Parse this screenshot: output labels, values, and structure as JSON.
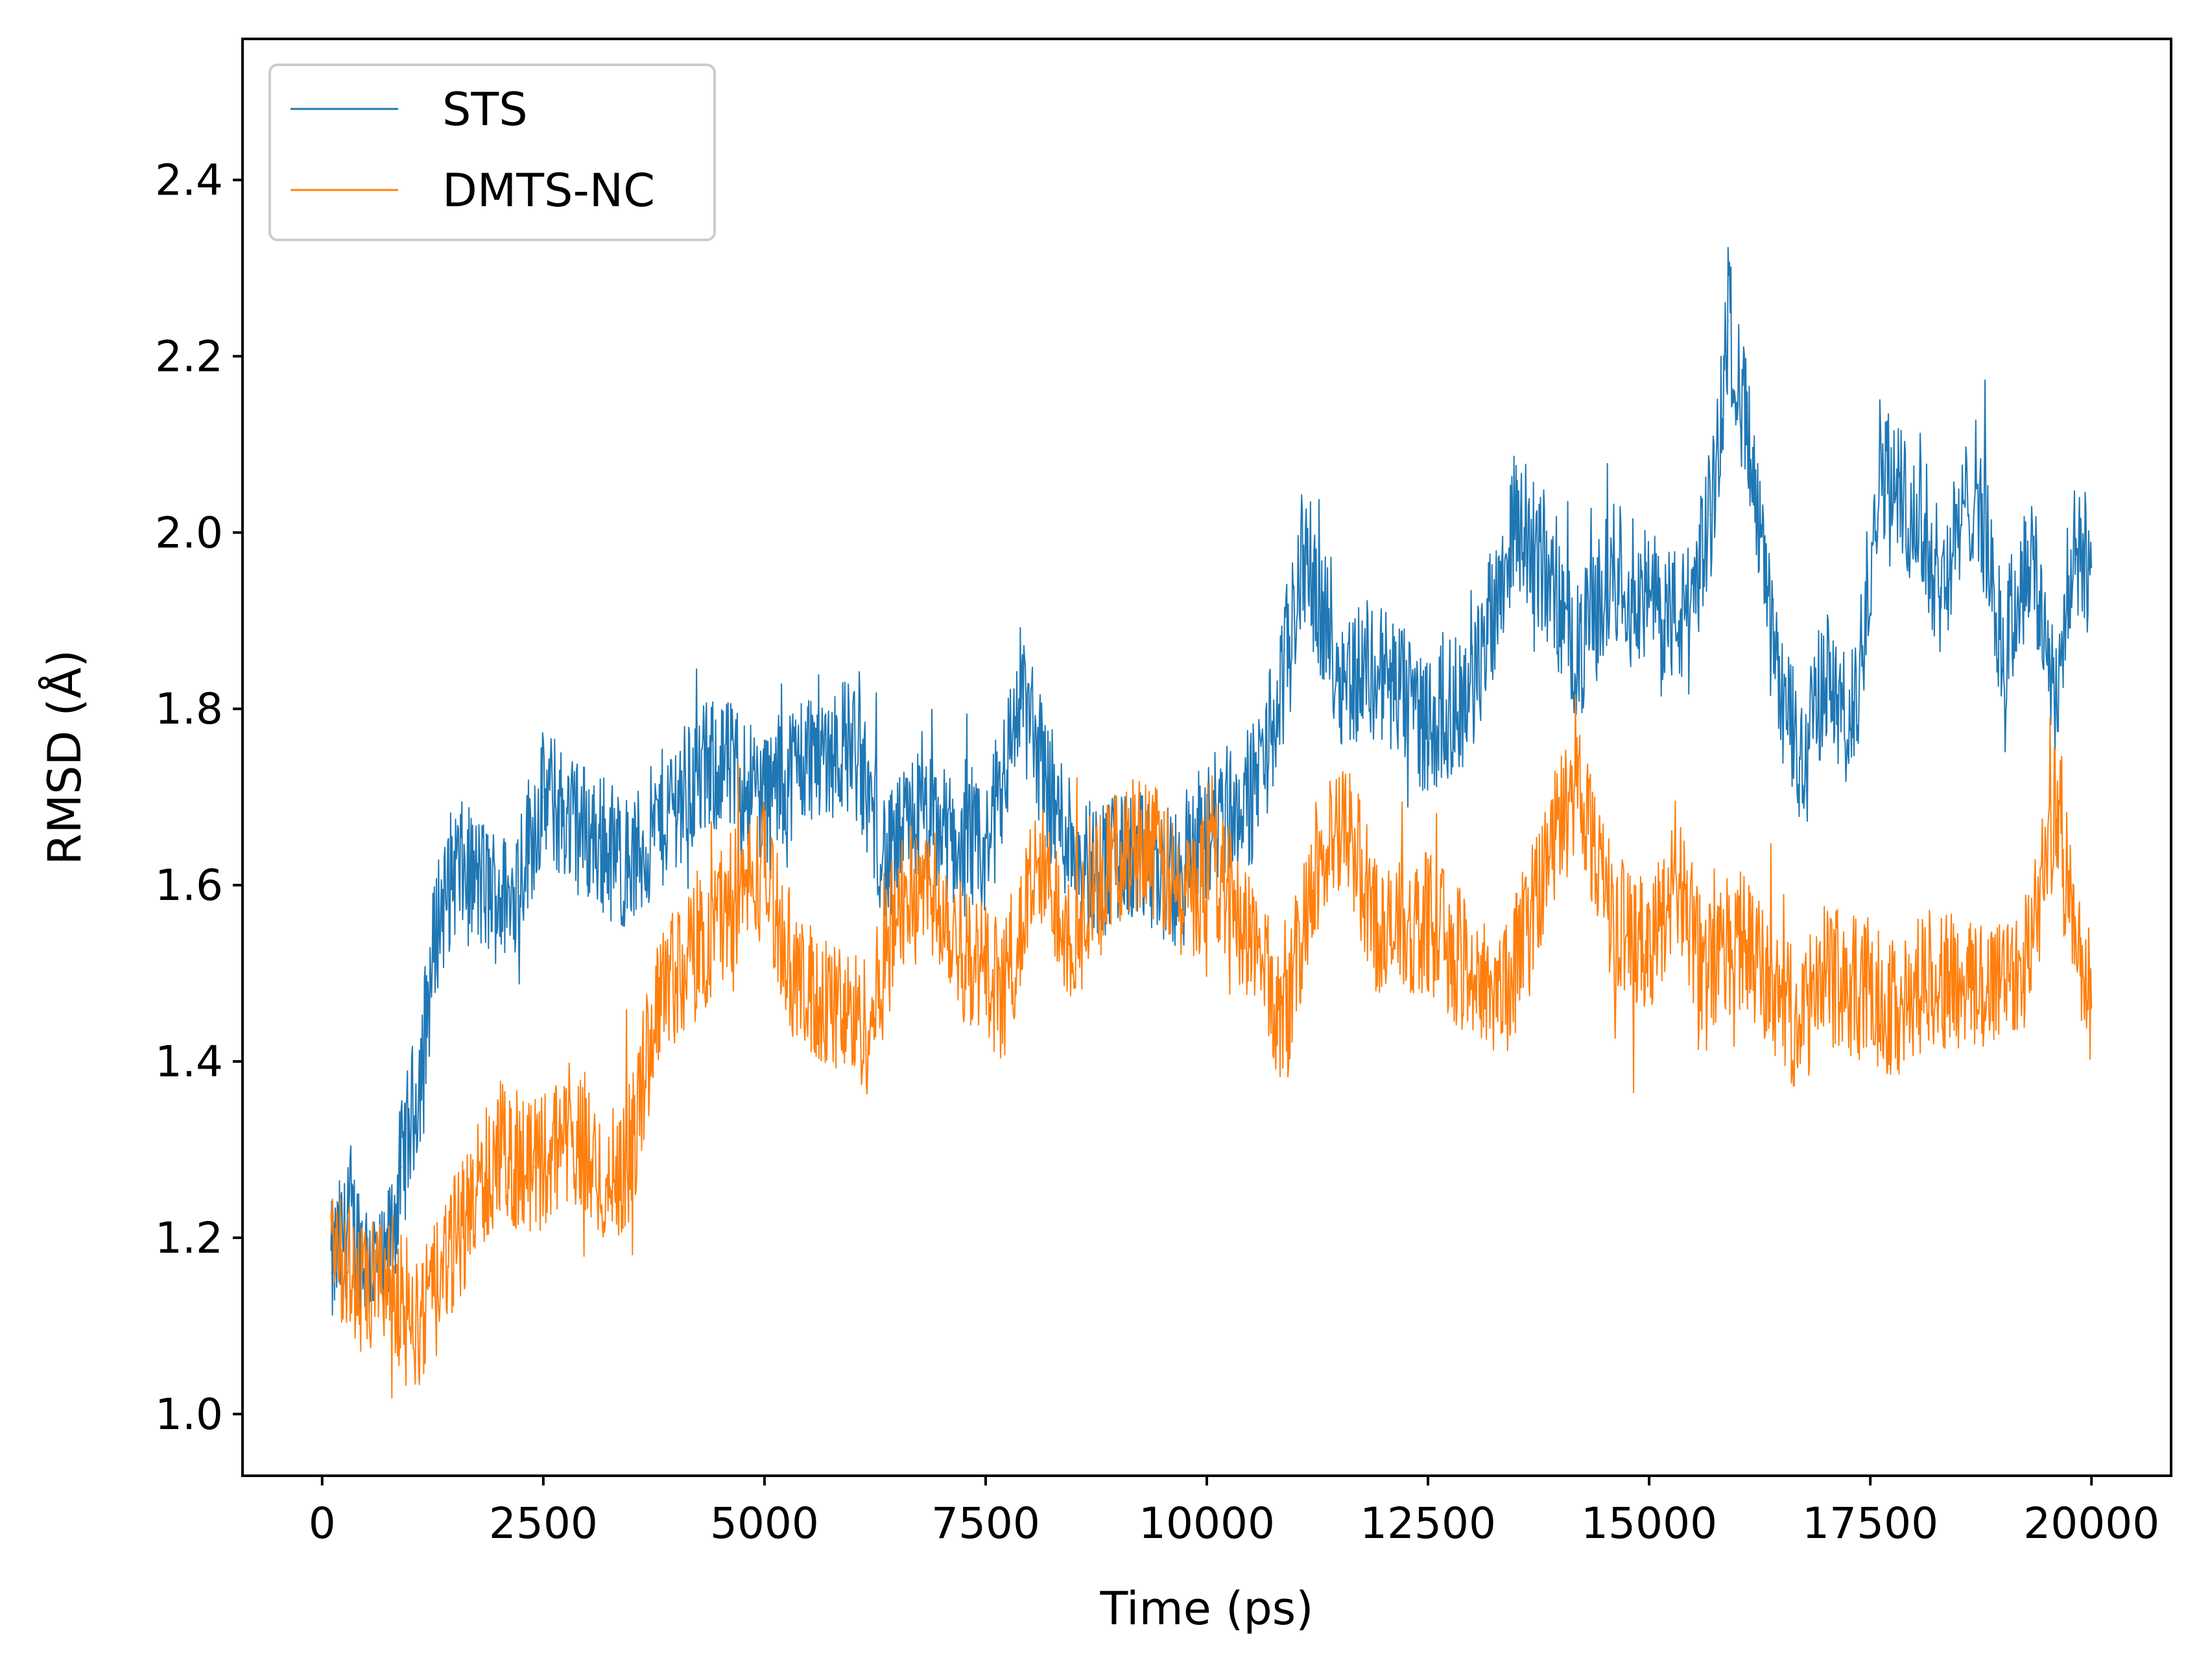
{
  "chart_data": {
    "type": "line",
    "title": "",
    "xlabel": "Time (ps)",
    "ylabel": "RMSD (Å)",
    "xlim": [
      -900,
      20900
    ],
    "ylim": [
      0.93,
      2.56
    ],
    "x_ticks": [
      0,
      2500,
      5000,
      7500,
      10000,
      12500,
      15000,
      17500,
      20000
    ],
    "x_tick_labels": [
      "0",
      "2500",
      "5000",
      "7500",
      "10000",
      "12500",
      "15000",
      "17500",
      "20000"
    ],
    "y_ticks": [
      1.0,
      1.2,
      1.4,
      1.6,
      1.8,
      2.0,
      2.2,
      2.4
    ],
    "y_tick_labels": [
      "1.0",
      "1.2",
      "1.4",
      "1.6",
      "1.8",
      "2.0",
      "2.2",
      "2.4"
    ],
    "grid": false,
    "legend_position": "top-left",
    "series": [
      {
        "name": "STS",
        "color": "#1f77b4",
        "x": [
          100,
          300,
          500,
          700,
          900,
          1100,
          1300,
          1500,
          1800,
          2100,
          2500,
          3000,
          3500,
          4000,
          4500,
          5000,
          5500,
          6000,
          6400,
          6700,
          7000,
          7500,
          7900,
          8300,
          8700,
          9200,
          9700,
          10100,
          10500,
          10800,
          11100,
          11500,
          12000,
          12500,
          13000,
          13500,
          13800,
          14200,
          14600,
          15000,
          15400,
          15700,
          15900,
          16100,
          16400,
          16700,
          17000,
          17300,
          17600,
          18000,
          18300,
          18700,
          19000,
          19300,
          19600,
          19800,
          20000
        ],
        "values": [
          1.16,
          1.22,
          1.18,
          1.15,
          1.28,
          1.38,
          1.56,
          1.62,
          1.6,
          1.58,
          1.7,
          1.66,
          1.62,
          1.7,
          1.74,
          1.7,
          1.75,
          1.76,
          1.62,
          1.68,
          1.66,
          1.63,
          1.82,
          1.68,
          1.62,
          1.63,
          1.6,
          1.68,
          1.7,
          1.8,
          1.98,
          1.84,
          1.84,
          1.78,
          1.82,
          2.02,
          1.96,
          1.86,
          1.96,
          1.92,
          1.9,
          2.02,
          2.24,
          2.12,
          1.86,
          1.74,
          1.84,
          1.76,
          2.08,
          2.02,
          1.94,
          2.06,
          1.86,
          1.98,
          1.82,
          1.97,
          1.96
        ]
      },
      {
        "name": "DMTS-NC",
        "color": "#ff7f0e",
        "x": [
          100,
          300,
          500,
          700,
          900,
          1100,
          1300,
          1600,
          2000,
          2400,
          2800,
          3200,
          3500,
          3800,
          4200,
          4600,
          5000,
          5400,
          5800,
          6200,
          6500,
          6900,
          7300,
          7700,
          8100,
          8500,
          8900,
          9300,
          9700,
          10100,
          10500,
          10900,
          11200,
          11600,
          12000,
          12500,
          13000,
          13400,
          13800,
          14200,
          14600,
          15000,
          15300,
          15600,
          16000,
          16400,
          16700,
          17000,
          17400,
          17800,
          18200,
          18600,
          19000,
          19300,
          19600,
          19800,
          20000
        ],
        "values": [
          1.22,
          1.16,
          1.13,
          1.16,
          1.13,
          1.1,
          1.14,
          1.22,
          1.3,
          1.28,
          1.32,
          1.26,
          1.3,
          1.48,
          1.52,
          1.58,
          1.62,
          1.48,
          1.46,
          1.44,
          1.58,
          1.6,
          1.52,
          1.48,
          1.62,
          1.54,
          1.62,
          1.66,
          1.58,
          1.62,
          1.54,
          1.44,
          1.62,
          1.66,
          1.54,
          1.56,
          1.5,
          1.48,
          1.62,
          1.72,
          1.56,
          1.52,
          1.62,
          1.5,
          1.54,
          1.48,
          1.44,
          1.5,
          1.48,
          1.46,
          1.5,
          1.48,
          1.5,
          1.52,
          1.7,
          1.54,
          1.46
        ]
      }
    ]
  }
}
